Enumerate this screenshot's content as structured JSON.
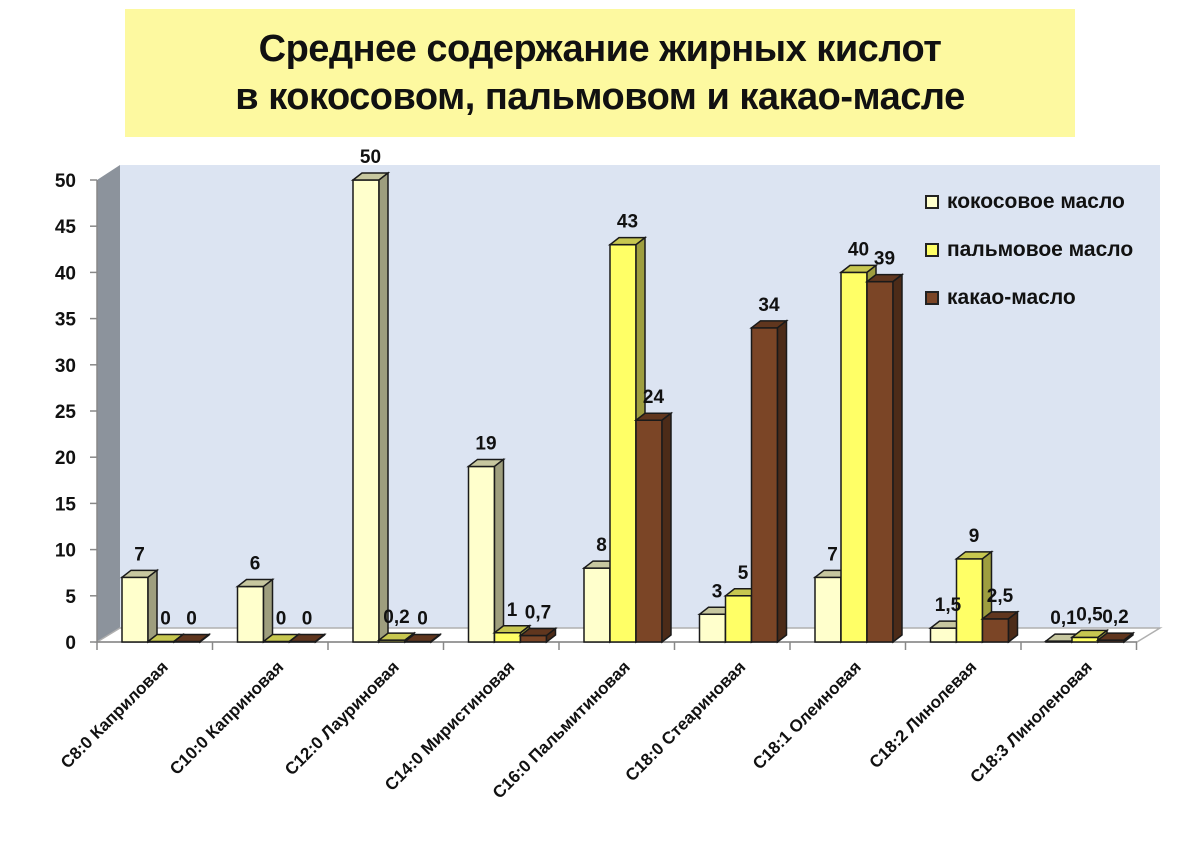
{
  "title": {
    "line1": "Среднее содержание жирных кислот",
    "line2": "в кокосовом, пальмовом и какао-масле"
  },
  "legend": [
    {
      "label": "кокосовое масло",
      "color": "#ffffcc"
    },
    {
      "label": "пальмовое масло",
      "color": "#ffff66"
    },
    {
      "label": "какао-масло",
      "color": "#7b4526"
    }
  ],
  "chart_data": {
    "type": "bar",
    "style": "3d-clustered-column",
    "title": "Среднее содержание жирных кислот в кокосовом, пальмовом и какао-масле",
    "xlabel": "",
    "ylabel": "",
    "ylim": [
      0,
      50
    ],
    "yticks": [
      0,
      5,
      10,
      15,
      20,
      25,
      30,
      35,
      40,
      45,
      50
    ],
    "grid": false,
    "legend_position": "top-right-inside",
    "categories": [
      "C8:0 Каприловая",
      "C10:0 Каприновая",
      "C12:0 Лауриновая",
      "C14:0 Миристиновая",
      "C16:0 Пальмитиновая",
      "C18:0 Стеариновая",
      "C18:1 Олеиновая",
      "C18:2 Линолевая",
      "C18:3 Линоленовая"
    ],
    "series": [
      {
        "name": "кокосовое масло",
        "color": "#ffffcc",
        "values": [
          7,
          6,
          50,
          19,
          8,
          3,
          7,
          1.5,
          0.1
        ],
        "labels": [
          "7",
          "6",
          "50",
          "19",
          "8",
          "3",
          "7",
          "1,5",
          "0,1"
        ]
      },
      {
        "name": "пальмовое масло",
        "color": "#ffff66",
        "values": [
          0,
          0,
          0.2,
          1,
          43,
          5,
          40,
          9,
          0.5
        ],
        "labels": [
          "0",
          "0",
          "0,2",
          "1",
          "43",
          "5",
          "40",
          "9",
          "0,5"
        ]
      },
      {
        "name": "какао-масло",
        "color": "#7b4526",
        "values": [
          0,
          0,
          0,
          0.7,
          24,
          34,
          39,
          2.5,
          0.2
        ],
        "labels": [
          "0",
          "0",
          "0",
          "0,7",
          "24",
          "34",
          "39",
          "2,5",
          "0,2"
        ]
      }
    ]
  }
}
